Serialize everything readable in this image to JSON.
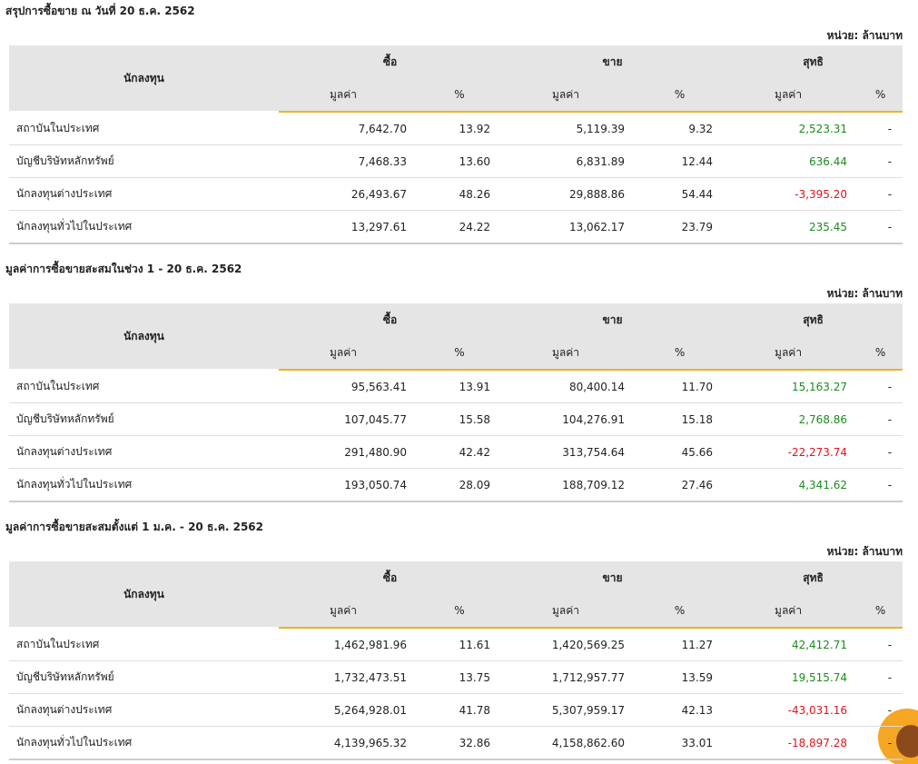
{
  "sections": [
    {
      "title": "สรุปการซื้อขาย ณ วันที่ 20 ธ.ค. 2562",
      "unit": "หน่วย: ล้านบาท",
      "header": {
        "investor": "นักลงทุน",
        "buy": "ซื้อ",
        "sell": "ขาย",
        "net": "สุทธิ",
        "value": "มูลค่า",
        "pct": "%"
      },
      "rows": [
        [
          "สถาบันในประเทศ",
          "7,642.70",
          "13.92",
          "5,119.39",
          "9.32",
          "2,523.31",
          "-"
        ],
        [
          "บัญชีบริษัทหลักทรัพย์",
          "7,468.33",
          "13.60",
          "6,831.89",
          "12.44",
          "636.44",
          "-"
        ],
        [
          "นักลงทุนต่างประเทศ",
          "26,493.67",
          "48.26",
          "29,888.86",
          "54.44",
          "-3,395.20",
          "-"
        ],
        [
          "นักลงทุนทั่วไปในประเทศ",
          "13,297.61",
          "24.22",
          "13,062.17",
          "23.79",
          "235.45",
          "-"
        ]
      ]
    },
    {
      "title": "มูลค่าการซื้อขายสะสมในช่วง 1 - 20 ธ.ค. 2562",
      "unit": "หน่วย: ล้านบาท",
      "header": {
        "investor": "นักลงทุน",
        "buy": "ซื้อ",
        "sell": "ขาย",
        "net": "สุทธิ",
        "value": "มูลค่า",
        "pct": "%"
      },
      "rows": [
        [
          "สถาบันในประเทศ",
          "95,563.41",
          "13.91",
          "80,400.14",
          "11.70",
          "15,163.27",
          "-"
        ],
        [
          "บัญชีบริษัทหลักทรัพย์",
          "107,045.77",
          "15.58",
          "104,276.91",
          "15.18",
          "2,768.86",
          "-"
        ],
        [
          "นักลงทุนต่างประเทศ",
          "291,480.90",
          "42.42",
          "313,754.64",
          "45.66",
          "-22,273.74",
          "-"
        ],
        [
          "นักลงทุนทั่วไปในประเทศ",
          "193,050.74",
          "28.09",
          "188,709.12",
          "27.46",
          "4,341.62",
          "-"
        ]
      ]
    },
    {
      "title": "มูลค่าการซื้อขายสะสมตั้งแต่ 1 ม.ค. - 20 ธ.ค. 2562",
      "unit": "หน่วย: ล้านบาท",
      "header": {
        "investor": "นักลงทุน",
        "buy": "ซื้อ",
        "sell": "ขาย",
        "net": "สุทธิ",
        "value": "มูลค่า",
        "pct": "%"
      },
      "rows": [
        [
          "สถาบันในประเทศ",
          "1,462,981.96",
          "11.61",
          "1,420,569.25",
          "11.27",
          "42,412.71",
          "-"
        ],
        [
          "บัญชีบริษัทหลักทรัพย์",
          "1,732,473.51",
          "13.75",
          "1,712,957.77",
          "13.59",
          "19,515.74",
          "-"
        ],
        [
          "นักลงทุนต่างประเทศ",
          "5,264,928.01",
          "41.78",
          "5,307,959.17",
          "42.13",
          "-43,031.16",
          "-"
        ],
        [
          "นักลงทุนทั่วไปในประเทศ",
          "4,139,965.32",
          "32.86",
          "4,158,862.60",
          "33.01",
          "-18,897.28",
          "-"
        ]
      ]
    }
  ]
}
